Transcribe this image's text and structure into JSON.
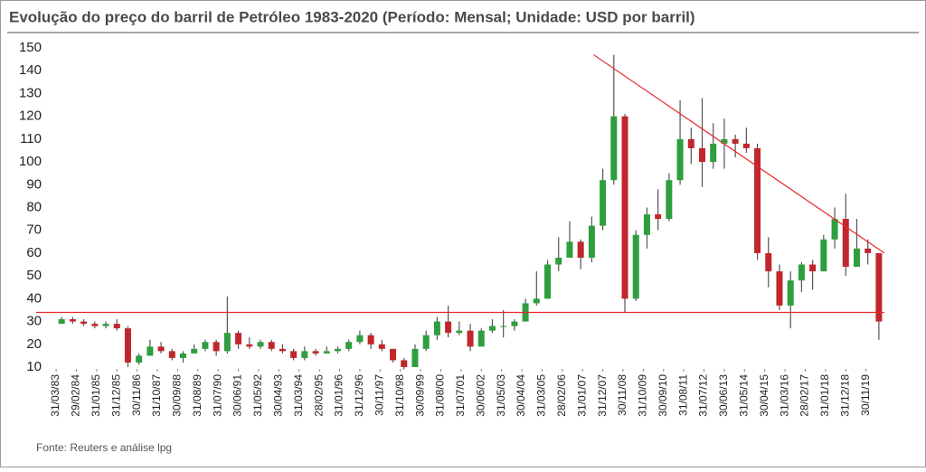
{
  "chart_data": {
    "type": "candlestick",
    "title": "Evolução do preço do barril de Petróleo 1983-2020 (Período: Mensal; Unidade: USD por barril)",
    "source": "Fonte: Reuters e análise lpg",
    "x": [
      "1983-03",
      "1983-09",
      "1984-03",
      "1984-09",
      "1985-03",
      "1985-09",
      "1986-03",
      "1986-09",
      "1987-03",
      "1987-09",
      "1988-03",
      "1988-09",
      "1989-03",
      "1989-09",
      "1990-03",
      "1990-09",
      "1991-03",
      "1991-09",
      "1992-03",
      "1992-09",
      "1993-03",
      "1993-09",
      "1994-03",
      "1994-09",
      "1995-03",
      "1995-09",
      "1996-03",
      "1996-09",
      "1997-03",
      "1997-09",
      "1998-03",
      "1998-09",
      "1999-03",
      "1999-09",
      "2000-03",
      "2000-09",
      "2001-03",
      "2001-09",
      "2002-03",
      "2002-09",
      "2003-03",
      "2003-09",
      "2004-03",
      "2004-09",
      "2005-03",
      "2005-09",
      "2006-03",
      "2006-09",
      "2007-03",
      "2007-09",
      "2008-03",
      "2008-09",
      "2009-03",
      "2009-09",
      "2010-03",
      "2010-09",
      "2011-03",
      "2011-09",
      "2012-03",
      "2012-09",
      "2013-03",
      "2013-09",
      "2014-03",
      "2014-09",
      "2015-03",
      "2015-09",
      "2016-03",
      "2016-09",
      "2017-03",
      "2017-09",
      "2018-03",
      "2018-09",
      "2019-03",
      "2019-09",
      "2020-03"
    ],
    "open": [
      29,
      31,
      30,
      29,
      28,
      29,
      27,
      12,
      15,
      19,
      17,
      14,
      16,
      18,
      21,
      17,
      25,
      20,
      19,
      21,
      18,
      17,
      14,
      17,
      16,
      17,
      18,
      21,
      24,
      20,
      18,
      13,
      10,
      18,
      24,
      30,
      25,
      26,
      19,
      26,
      28,
      28,
      30,
      38,
      40,
      55,
      58,
      65,
      58,
      72,
      92,
      120,
      40,
      68,
      77,
      75,
      92,
      110,
      106,
      100,
      108,
      110,
      108,
      106,
      60,
      52,
      37,
      48,
      55,
      52,
      66,
      75,
      54,
      62,
      60
    ],
    "high": [
      32,
      32,
      31,
      30,
      30,
      31,
      28,
      16,
      22,
      21,
      18,
      17,
      20,
      22,
      22,
      41,
      26,
      23,
      22,
      22,
      20,
      18,
      19,
      18,
      19,
      19,
      22,
      26,
      25,
      22,
      18,
      14,
      20,
      26,
      32,
      37,
      30,
      29,
      27,
      31,
      35,
      31,
      40,
      52,
      57,
      67,
      74,
      66,
      76,
      97,
      147,
      121,
      70,
      80,
      88,
      95,
      127,
      115,
      128,
      117,
      119,
      112,
      115,
      108,
      67,
      55,
      52,
      56,
      57,
      68,
      80,
      86,
      75,
      66,
      60
    ],
    "low": [
      29,
      29,
      28,
      27,
      27,
      26,
      10,
      11,
      15,
      16,
      13,
      12,
      16,
      17,
      15,
      16,
      18,
      18,
      18,
      17,
      16,
      13,
      13,
      15,
      16,
      16,
      17,
      20,
      18,
      17,
      12,
      9,
      10,
      17,
      22,
      23,
      24,
      17,
      19,
      25,
      23,
      26,
      30,
      37,
      40,
      52,
      58,
      53,
      56,
      70,
      90,
      34,
      39,
      62,
      70,
      74,
      90,
      99,
      89,
      97,
      97,
      102,
      104,
      57,
      45,
      35,
      27,
      43,
      44,
      52,
      62,
      50,
      54,
      55,
      22
    ],
    "close": [
      31,
      30,
      29,
      28,
      29,
      27,
      12,
      15,
      19,
      17,
      14,
      16,
      18,
      21,
      17,
      25,
      20,
      19,
      21,
      18,
      17,
      14,
      17,
      16,
      17,
      18,
      21,
      24,
      20,
      18,
      13,
      10,
      18,
      24,
      30,
      25,
      26,
      19,
      26,
      28,
      28,
      30,
      38,
      40,
      55,
      58,
      65,
      58,
      72,
      92,
      120,
      40,
      68,
      77,
      75,
      92,
      110,
      106,
      100,
      108,
      110,
      108,
      106,
      60,
      52,
      37,
      48,
      55,
      52,
      66,
      75,
      54,
      62,
      60,
      30
    ],
    "up_color": "#2e9e3e",
    "down_color": "#c0262b",
    "wick_color": "#555555",
    "xlim": [
      "1983-01",
      "2020-09"
    ],
    "xticks": [
      {
        "value": "1983-03",
        "label": "31/03/83"
      },
      {
        "value": "1984-02",
        "label": "29/02/84"
      },
      {
        "value": "1985-01",
        "label": "31/01/85"
      },
      {
        "value": "1985-12",
        "label": "31/12/85"
      },
      {
        "value": "1986-11",
        "label": "30/11/86"
      },
      {
        "value": "1987-10",
        "label": "31/10/87"
      },
      {
        "value": "1988-09",
        "label": "30/09/88"
      },
      {
        "value": "1989-08",
        "label": "31/08/89"
      },
      {
        "value": "1990-07",
        "label": "31/07/90"
      },
      {
        "value": "1991-06",
        "label": "30/06/91"
      },
      {
        "value": "1992-05",
        "label": "31/05/92"
      },
      {
        "value": "1993-04",
        "label": "30/04/93"
      },
      {
        "value": "1994-03",
        "label": "31/03/94"
      },
      {
        "value": "1995-02",
        "label": "28/02/95"
      },
      {
        "value": "1996-01",
        "label": "31/01/96"
      },
      {
        "value": "1996-12",
        "label": "31/12/96"
      },
      {
        "value": "1997-11",
        "label": "30/11/97"
      },
      {
        "value": "1998-10",
        "label": "31/10/98"
      },
      {
        "value": "1999-09",
        "label": "30/09/99"
      },
      {
        "value": "2000-08",
        "label": "31/08/00"
      },
      {
        "value": "2001-07",
        "label": "31/07/01"
      },
      {
        "value": "2002-06",
        "label": "30/06/02"
      },
      {
        "value": "2003-05",
        "label": "31/05/03"
      },
      {
        "value": "2004-04",
        "label": "30/04/04"
      },
      {
        "value": "2005-03",
        "label": "31/03/05"
      },
      {
        "value": "2006-02",
        "label": "28/02/06"
      },
      {
        "value": "2007-01",
        "label": "31/01/07"
      },
      {
        "value": "2007-12",
        "label": "31/12/07"
      },
      {
        "value": "2008-11",
        "label": "30/11/08"
      },
      {
        "value": "2009-10",
        "label": "31/10/09"
      },
      {
        "value": "2010-09",
        "label": "30/09/10"
      },
      {
        "value": "2011-08",
        "label": "31/08/11"
      },
      {
        "value": "2012-07",
        "label": "31/07/12"
      },
      {
        "value": "2013-06",
        "label": "30/06/13"
      },
      {
        "value": "2014-05",
        "label": "31/05/14"
      },
      {
        "value": "2015-04",
        "label": "30/04/15"
      },
      {
        "value": "2016-03",
        "label": "31/03/16"
      },
      {
        "value": "2017-02",
        "label": "28/02/17"
      },
      {
        "value": "2018-01",
        "label": "31/01/18"
      },
      {
        "value": "2018-12",
        "label": "31/12/18"
      },
      {
        "value": "2019-11",
        "label": "30/11/19"
      }
    ],
    "ylim": [
      10,
      150
    ],
    "yticks": [
      10,
      20,
      30,
      40,
      50,
      60,
      70,
      80,
      90,
      100,
      110,
      120,
      130,
      140,
      150
    ],
    "reference_line": {
      "y": 34,
      "color": "#e8282b"
    },
    "trend_line": {
      "x": [
        "2007-07",
        "2020-09"
      ],
      "y": [
        147,
        60
      ],
      "color": "#e8282b"
    }
  }
}
